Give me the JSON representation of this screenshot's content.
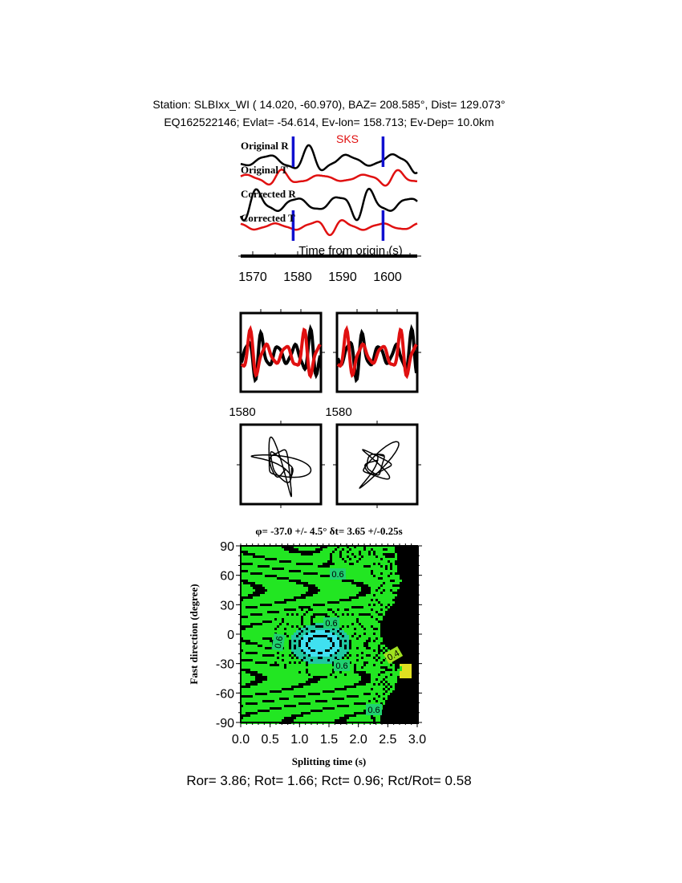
{
  "header": {
    "line1": "Station: SLBIxx_WI (  14.020,  -60.970), BAZ=  208.585°, Dist=  129.073°",
    "line2": "EQ162522146; Evlat= -54.614, Ev-lon= 158.713; Ev-Dep= 10.0km"
  },
  "traces": {
    "labels": [
      "Original R",
      "Original T",
      "Corrected R",
      "Corrected T"
    ],
    "phase": "SKS",
    "xlabel": "Time from origin (s)",
    "ticks": [
      "1570",
      "1580",
      "1590",
      "1600"
    ],
    "window": [
      1579,
      1599
    ]
  },
  "panels": {
    "tick_label_left": "1580",
    "tick_label_right": "1580"
  },
  "chart_data": {
    "type": "heatmap",
    "title": "φ= -37.0 +/- 4.5° δt= 3.65 +/-0.25s",
    "xlabel": "Splitting time (s)",
    "ylabel": "Fast direction (degree)",
    "xlim": [
      0,
      3
    ],
    "ylim": [
      -90,
      90
    ],
    "xticks": [
      "0.0",
      "0.5",
      "1.0",
      "1.5",
      "2.0",
      "2.5",
      "3.0"
    ],
    "yticks": [
      "90",
      "60",
      "30",
      "0",
      "-30",
      "-60",
      "-90"
    ],
    "contour_labels": [
      "0.6",
      "0.6",
      "0.6",
      "0.6",
      "0.6",
      "0.4"
    ],
    "colors": {
      "low": "#40e0f0",
      "mid": "#22e622",
      "high": "#000000"
    }
  },
  "footer": {
    "stats": "Ror= 3.86; Rot= 1.66; Rct= 0.96; Rct/Rot= 0.58"
  },
  "colors": {
    "radial": "#000000",
    "transverse": "#e01010",
    "window": "#1010d0"
  }
}
